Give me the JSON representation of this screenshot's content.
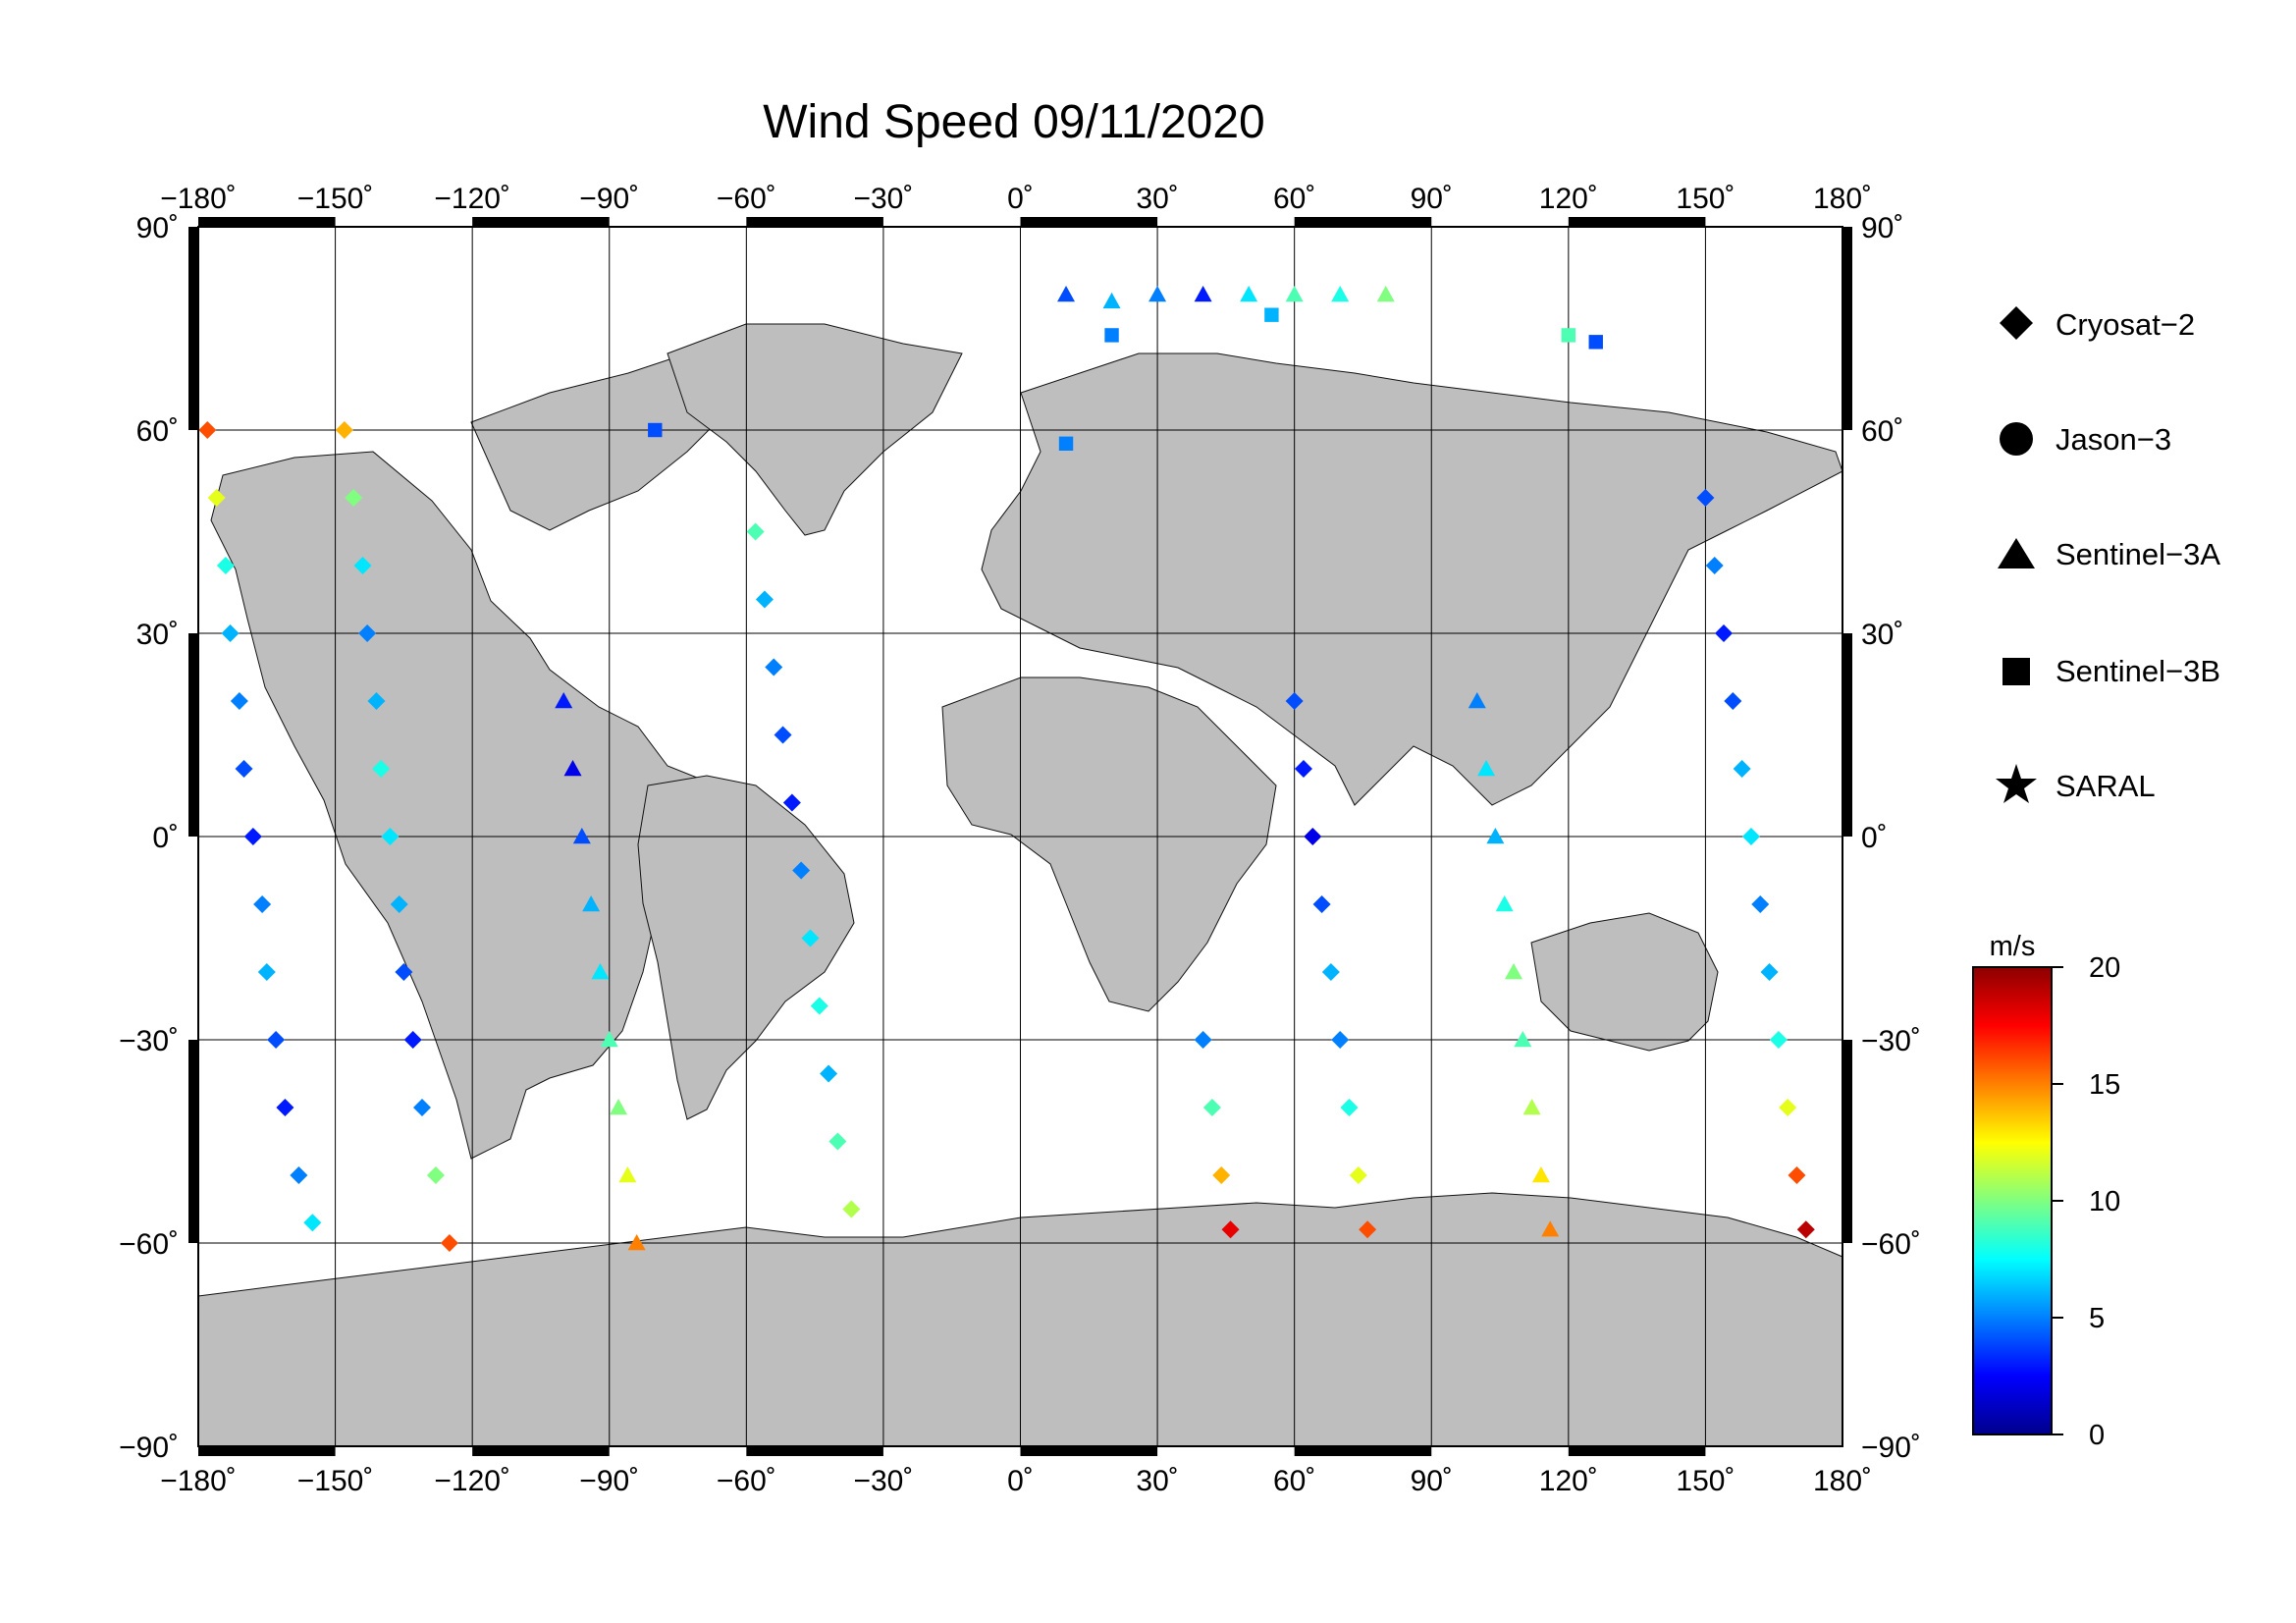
{
  "title": "Wind Speed 09/11/2020",
  "map": {
    "projection": "equirectangular",
    "lon_range": [
      -180,
      180
    ],
    "lat_range": [
      -90,
      90
    ],
    "lon_ticks": [
      -180,
      -150,
      -120,
      -90,
      -60,
      -30,
      0,
      30,
      60,
      90,
      120,
      150,
      180
    ],
    "lat_ticks": [
      90,
      60,
      30,
      0,
      -30,
      -60,
      -90
    ],
    "lon_tick_labels": [
      "−180˚",
      "−150˚",
      "−120˚",
      "−90˚",
      "−60˚",
      "−30˚",
      "0˚",
      "30˚",
      "60˚",
      "90˚",
      "120˚",
      "150˚",
      "180˚"
    ],
    "lat_tick_labels": [
      "90˚",
      "60˚",
      "30˚",
      "0˚",
      "−30˚",
      "−60˚",
      "−90˚"
    ],
    "grid": true,
    "land_color": "#bebebe",
    "ocean_color": "#ffffff"
  },
  "legend": {
    "items": [
      {
        "symbol": "diamond",
        "label": "Cryosat−2"
      },
      {
        "symbol": "circle",
        "label": "Jason−3"
      },
      {
        "symbol": "triangle",
        "label": "Sentinel−3A"
      },
      {
        "symbol": "square",
        "label": "Sentinel−3B"
      },
      {
        "symbol": "star",
        "label": "SARAL"
      }
    ]
  },
  "colorbar": {
    "unit": "m/s",
    "min": 0,
    "max": 20,
    "ticks": [
      0,
      5,
      10,
      15,
      20
    ],
    "tick_labels": [
      "0",
      "5",
      "10",
      "15",
      "20"
    ],
    "colors": [
      "#00008c",
      "#0000ff",
      "#0080ff",
      "#00ffff",
      "#80ff80",
      "#ffff00",
      "#ff8000",
      "#ff0000",
      "#8c0000"
    ]
  },
  "chart_data": {
    "type": "scatter",
    "title": "Wind Speed 09/11/2020",
    "xlabel": "",
    "ylabel": "",
    "xlim": [
      -180,
      180
    ],
    "ylim": [
      -90,
      90
    ],
    "value_unit": "m/s",
    "value_range": [
      0,
      20
    ],
    "series": [
      {
        "name": "Cryosat−2",
        "marker": "diamond",
        "points": [
          {
            "x": -178,
            "y": 60,
            "v": 16
          },
          {
            "x": -176,
            "y": 50,
            "v": 12
          },
          {
            "x": -174,
            "y": 40,
            "v": 8
          },
          {
            "x": -173,
            "y": 30,
            "v": 6
          },
          {
            "x": -171,
            "y": 20,
            "v": 5
          },
          {
            "x": -170,
            "y": 10,
            "v": 4
          },
          {
            "x": -168,
            "y": 0,
            "v": 3
          },
          {
            "x": -166,
            "y": -10,
            "v": 5
          },
          {
            "x": -165,
            "y": -20,
            "v": 6
          },
          {
            "x": -163,
            "y": -30,
            "v": 4
          },
          {
            "x": -161,
            "y": -40,
            "v": 3
          },
          {
            "x": -158,
            "y": -50,
            "v": 5
          },
          {
            "x": -155,
            "y": -57,
            "v": 7
          },
          {
            "x": -148,
            "y": 60,
            "v": 14
          },
          {
            "x": -146,
            "y": 50,
            "v": 10
          },
          {
            "x": -144,
            "y": 40,
            "v": 7
          },
          {
            "x": -143,
            "y": 30,
            "v": 5
          },
          {
            "x": -141,
            "y": 20,
            "v": 6
          },
          {
            "x": -140,
            "y": 10,
            "v": 8
          },
          {
            "x": -138,
            "y": 0,
            "v": 7
          },
          {
            "x": -136,
            "y": -10,
            "v": 6
          },
          {
            "x": -135,
            "y": -20,
            "v": 4
          },
          {
            "x": -133,
            "y": -30,
            "v": 3
          },
          {
            "x": -131,
            "y": -40,
            "v": 5
          },
          {
            "x": -128,
            "y": -50,
            "v": 10
          },
          {
            "x": -125,
            "y": -60,
            "v": 16
          },
          {
            "x": -58,
            "y": 45,
            "v": 9
          },
          {
            "x": -56,
            "y": 35,
            "v": 6
          },
          {
            "x": -54,
            "y": 25,
            "v": 5
          },
          {
            "x": -52,
            "y": 15,
            "v": 4
          },
          {
            "x": -50,
            "y": 5,
            "v": 3
          },
          {
            "x": -48,
            "y": -5,
            "v": 5
          },
          {
            "x": -46,
            "y": -15,
            "v": 7
          },
          {
            "x": -44,
            "y": -25,
            "v": 8
          },
          {
            "x": -42,
            "y": -35,
            "v": 6
          },
          {
            "x": -40,
            "y": -45,
            "v": 9
          },
          {
            "x": -37,
            "y": -55,
            "v": 11
          },
          {
            "x": 40,
            "y": -30,
            "v": 5
          },
          {
            "x": 42,
            "y": -40,
            "v": 9
          },
          {
            "x": 44,
            "y": -50,
            "v": 14
          },
          {
            "x": 46,
            "y": -58,
            "v": 18
          },
          {
            "x": 60,
            "y": 20,
            "v": 4
          },
          {
            "x": 62,
            "y": 10,
            "v": 3
          },
          {
            "x": 64,
            "y": 0,
            "v": 2
          },
          {
            "x": 66,
            "y": -10,
            "v": 4
          },
          {
            "x": 68,
            "y": -20,
            "v": 6
          },
          {
            "x": 70,
            "y": -30,
            "v": 5
          },
          {
            "x": 72,
            "y": -40,
            "v": 8
          },
          {
            "x": 74,
            "y": -50,
            "v": 12
          },
          {
            "x": 76,
            "y": -58,
            "v": 16
          },
          {
            "x": 150,
            "y": 50,
            "v": 4
          },
          {
            "x": 152,
            "y": 40,
            "v": 5
          },
          {
            "x": 154,
            "y": 30,
            "v": 3
          },
          {
            "x": 156,
            "y": 20,
            "v": 4
          },
          {
            "x": 158,
            "y": 10,
            "v": 6
          },
          {
            "x": 160,
            "y": 0,
            "v": 7
          },
          {
            "x": 162,
            "y": -10,
            "v": 5
          },
          {
            "x": 164,
            "y": -20,
            "v": 6
          },
          {
            "x": 166,
            "y": -30,
            "v": 8
          },
          {
            "x": 168,
            "y": -40,
            "v": 12
          },
          {
            "x": 170,
            "y": -50,
            "v": 16
          },
          {
            "x": 172,
            "y": -58,
            "v": 19
          }
        ]
      },
      {
        "name": "Sentinel−3A",
        "marker": "triangle",
        "points": [
          {
            "x": -100,
            "y": 20,
            "v": 3
          },
          {
            "x": -98,
            "y": 10,
            "v": 2
          },
          {
            "x": -96,
            "y": 0,
            "v": 4
          },
          {
            "x": -94,
            "y": -10,
            "v": 6
          },
          {
            "x": -92,
            "y": -20,
            "v": 7
          },
          {
            "x": -90,
            "y": -30,
            "v": 9
          },
          {
            "x": -88,
            "y": -40,
            "v": 10
          },
          {
            "x": -86,
            "y": -50,
            "v": 12
          },
          {
            "x": -84,
            "y": -60,
            "v": 15
          },
          {
            "x": 10,
            "y": 80,
            "v": 4
          },
          {
            "x": 20,
            "y": 79,
            "v": 6
          },
          {
            "x": 30,
            "y": 80,
            "v": 5
          },
          {
            "x": 40,
            "y": 80,
            "v": 3
          },
          {
            "x": 50,
            "y": 80,
            "v": 7
          },
          {
            "x": 60,
            "y": 80,
            "v": 9
          },
          {
            "x": 70,
            "y": 80,
            "v": 8
          },
          {
            "x": 80,
            "y": 80,
            "v": 10
          },
          {
            "x": 100,
            "y": 20,
            "v": 5
          },
          {
            "x": 102,
            "y": 10,
            "v": 7
          },
          {
            "x": 104,
            "y": 0,
            "v": 6
          },
          {
            "x": 106,
            "y": -10,
            "v": 8
          },
          {
            "x": 108,
            "y": -20,
            "v": 10
          },
          {
            "x": 110,
            "y": -30,
            "v": 9
          },
          {
            "x": 112,
            "y": -40,
            "v": 11
          },
          {
            "x": 114,
            "y": -50,
            "v": 13
          },
          {
            "x": 116,
            "y": -58,
            "v": 15
          }
        ]
      },
      {
        "name": "Sentinel−3B",
        "marker": "square",
        "points": [
          {
            "x": -80,
            "y": 60,
            "v": 4
          },
          {
            "x": 20,
            "y": 74,
            "v": 5
          },
          {
            "x": 55,
            "y": 77,
            "v": 6
          },
          {
            "x": 120,
            "y": 74,
            "v": 9
          },
          {
            "x": 126,
            "y": 73,
            "v": 4
          },
          {
            "x": 10,
            "y": 58,
            "v": 5
          }
        ]
      },
      {
        "name": "Jason−3",
        "marker": "circle",
        "points": []
      },
      {
        "name": "SARAL",
        "marker": "star",
        "points": []
      }
    ]
  }
}
